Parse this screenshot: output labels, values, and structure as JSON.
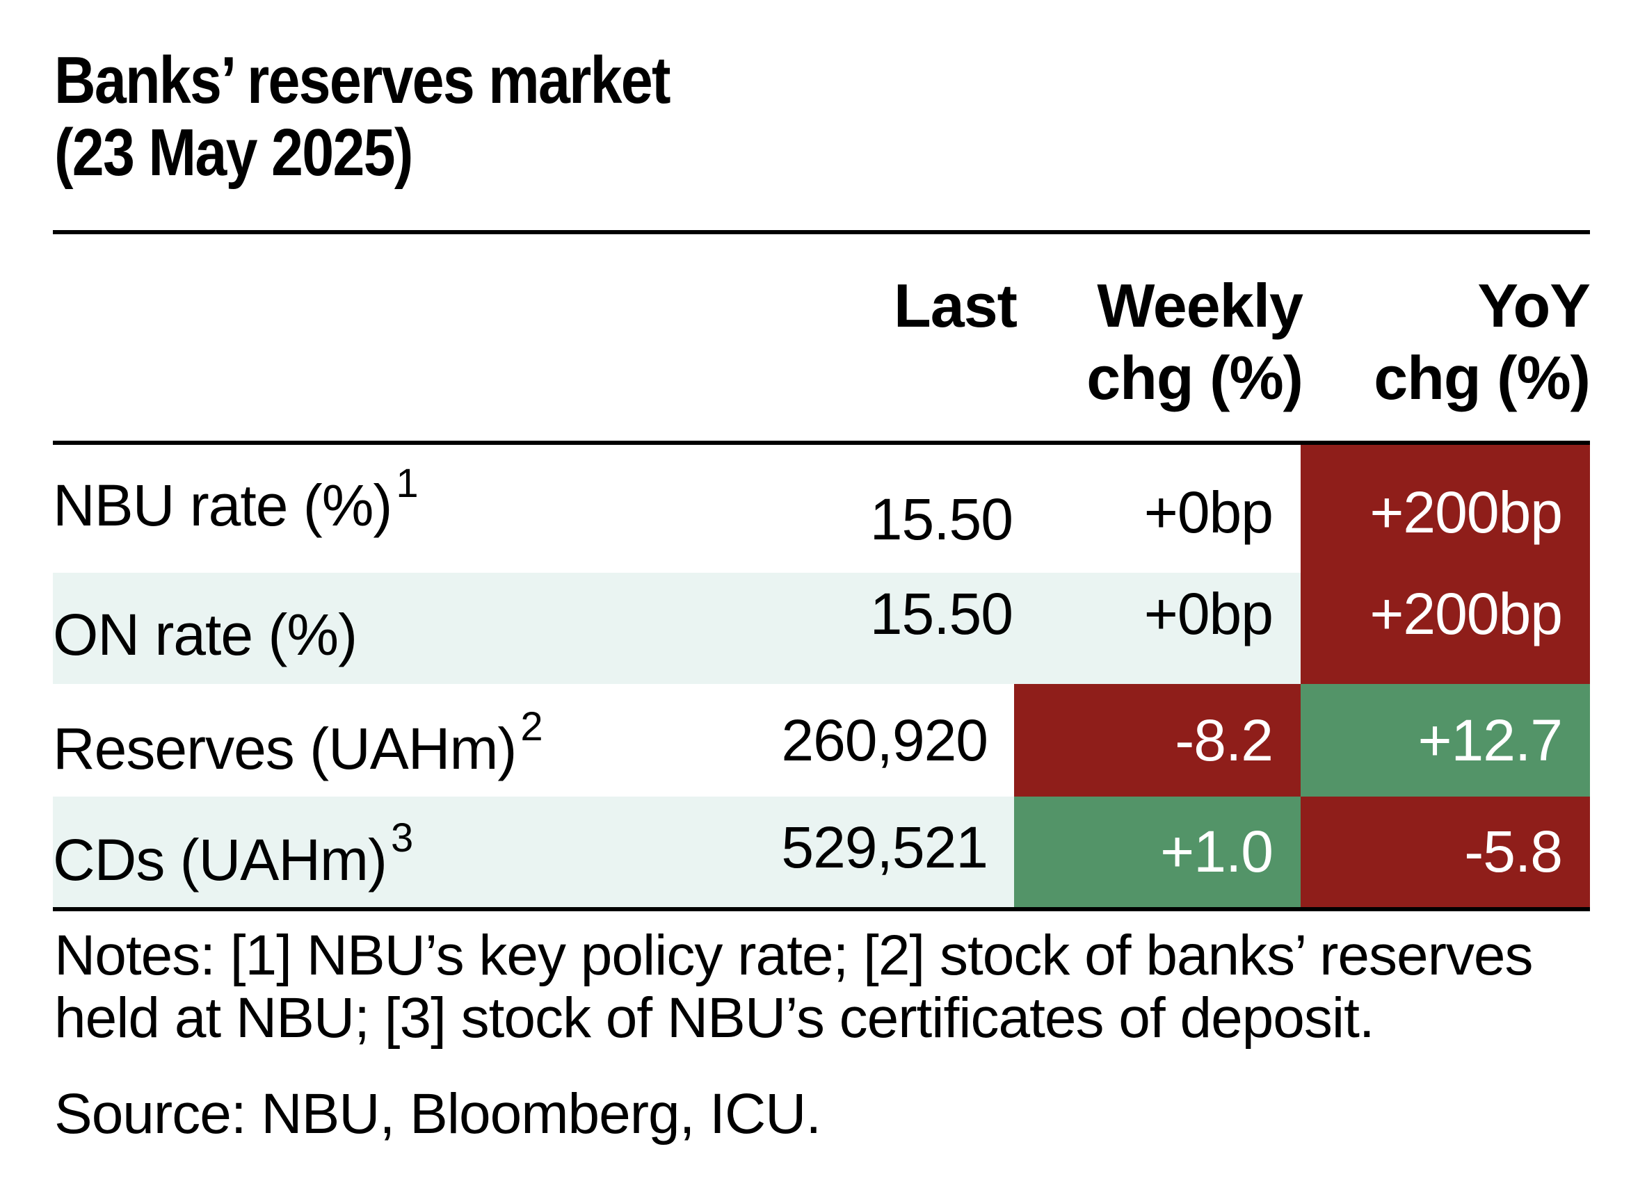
{
  "title": {
    "line1": "Banks’ reserves market",
    "line2": "(23 May 2025)"
  },
  "columns": {
    "last": "Last",
    "weekly_line1": "Weekly",
    "weekly_line2": "chg (%)",
    "yoy_line1": "YoY",
    "yoy_line2": "chg (%)"
  },
  "rows": [
    {
      "label": "NBU rate (%)",
      "footnote": "1",
      "last": "15.50",
      "weekly": "+0bp",
      "yoy": "+200bp",
      "weekly_color": "none",
      "yoy_color": "#8f1e1a"
    },
    {
      "label": "ON rate (%)",
      "footnote": "",
      "last": "15.50",
      "weekly": "+0bp",
      "yoy": "+200bp",
      "weekly_color": "none",
      "yoy_color": "#8f1e1a"
    },
    {
      "label": "Reserves (UAHm)",
      "footnote": "2",
      "last": "260,920",
      "weekly": "-8.2",
      "yoy": "+12.7",
      "weekly_color": "#8f1e1a",
      "yoy_color": "#539468"
    },
    {
      "label": "CDs (UAHm)",
      "footnote": "3",
      "last": "529,521",
      "weekly": "+1.0",
      "yoy": "-5.8",
      "weekly_color": "#539468",
      "yoy_color": "#8f1e1a"
    }
  ],
  "notes": {
    "line1": "Notes: [1] NBU’s key policy rate; [2] stock of banks’ reserves",
    "line2": "held at NBU; [3] stock of NBU’s certificates of deposit."
  },
  "source": "Source: NBU, Bloomberg, ICU.",
  "colors": {
    "negative": "#8f1e1a",
    "positive": "#539468",
    "row_shade": "#eaf4f2"
  }
}
